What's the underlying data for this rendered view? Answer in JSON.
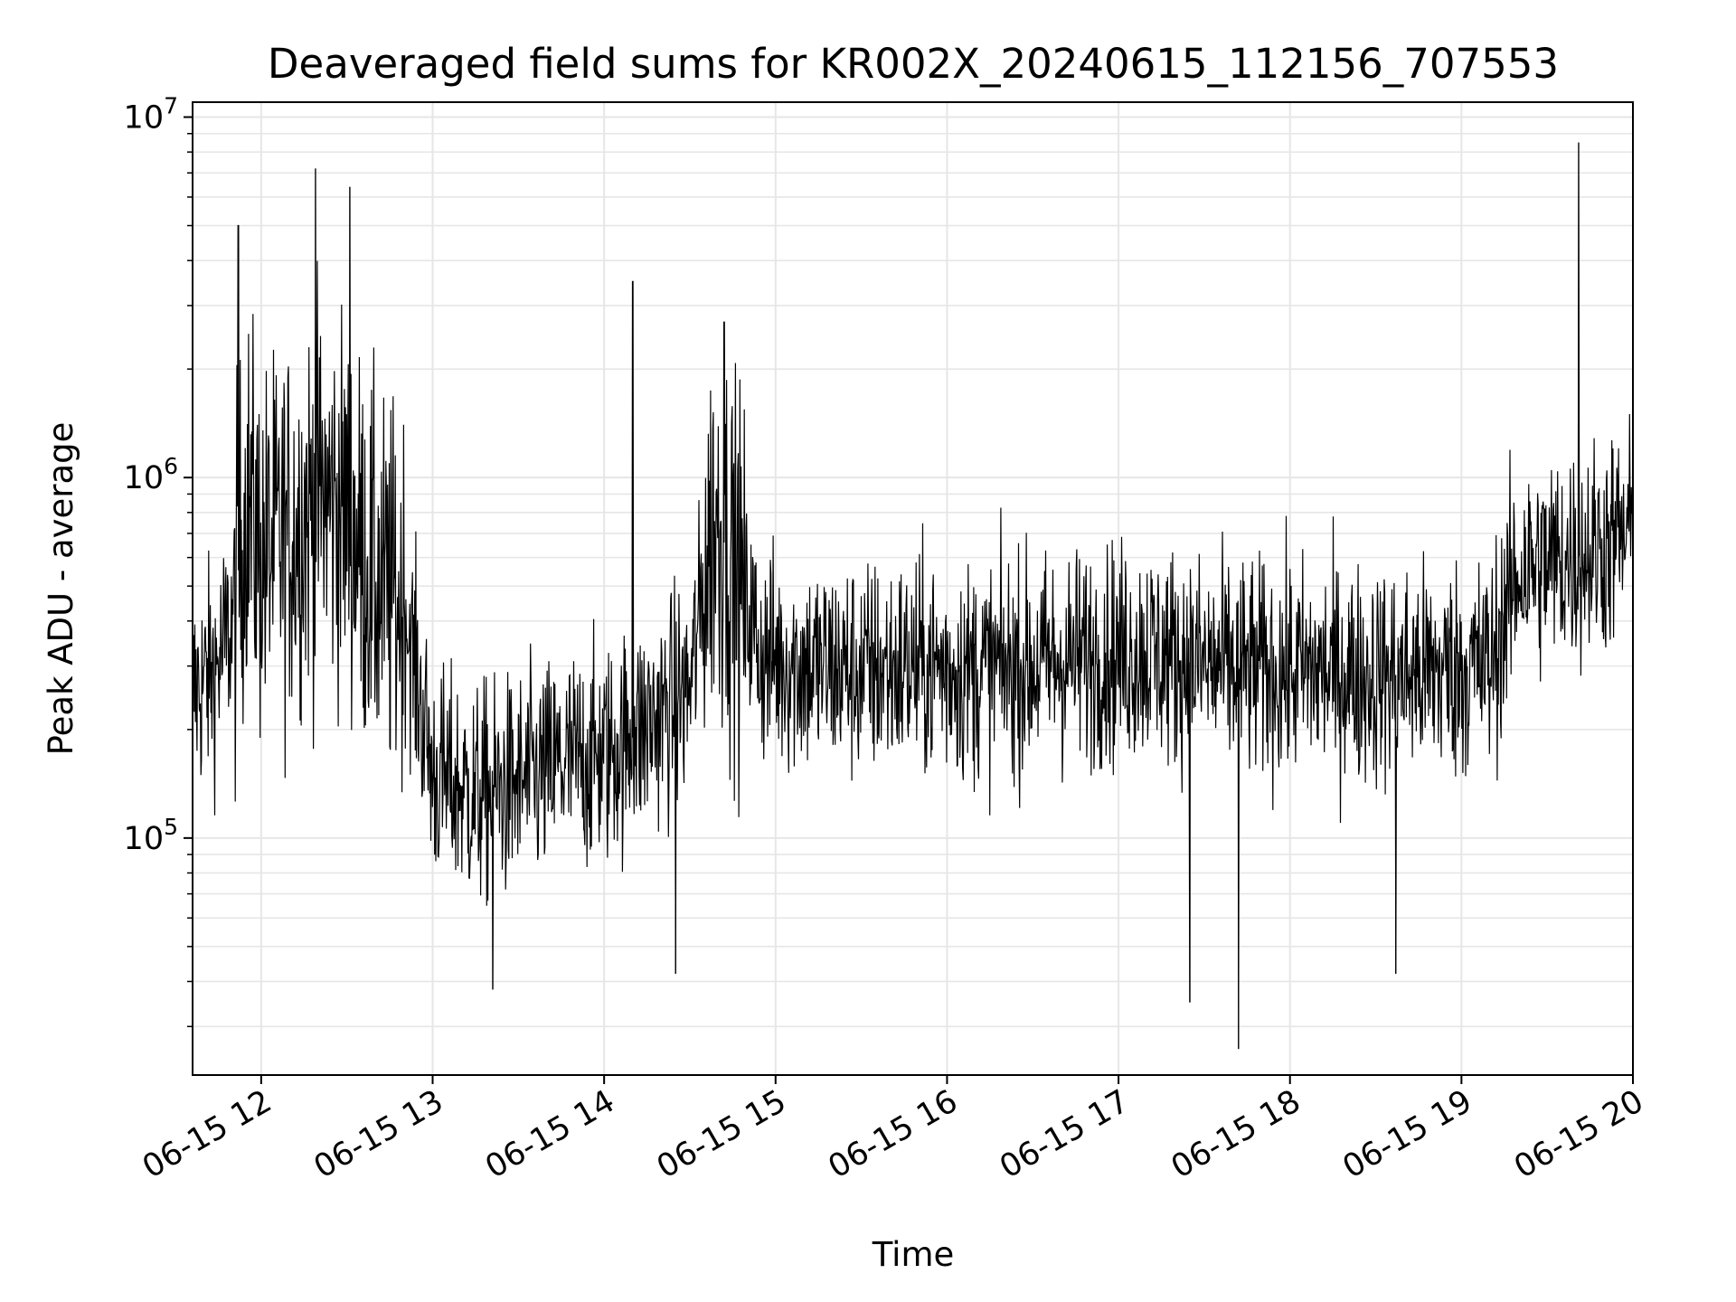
{
  "chart_data": {
    "type": "line",
    "title": "Deaveraged field sums for KR002X_20240615_112156_707553",
    "xlabel": "Time",
    "ylabel": "Peak ADU - average",
    "y_scale": "log",
    "ylim": [
      22000,
      11000000
    ],
    "xlim": [
      "06-15 11:36",
      "06-15 20:00"
    ],
    "x_ticks": [
      "06-15 12",
      "06-15 13",
      "06-15 14",
      "06-15 15",
      "06-15 16",
      "06-15 17",
      "06-15 18",
      "06-15 19",
      "06-15 20"
    ],
    "y_ticks": [
      {
        "base": "10",
        "exp": "5",
        "value": 100000
      },
      {
        "base": "10",
        "exp": "6",
        "value": 1000000
      },
      {
        "base": "10",
        "exp": "7",
        "value": 10000000
      }
    ],
    "grid": true,
    "line_color": "#000000",
    "grid_color": "#e6e6e6",
    "series": [
      {
        "x": [
          "06-15 11:36",
          "06-15 11:45",
          "06-15 11:50",
          "06-15 11:55",
          "06-15 12:00",
          "06-15 12:10",
          "06-15 12:20",
          "06-15 12:30",
          "06-15 12:40",
          "06-15 12:50",
          "06-15 13:00",
          "06-15 13:15",
          "06-15 13:30",
          "06-15 13:45",
          "06-15 14:00",
          "06-15 14:10",
          "06-15 14:20",
          "06-15 14:30",
          "06-15 14:38",
          "06-15 14:45",
          "06-15 14:55",
          "06-15 15:10",
          "06-15 15:30",
          "06-15 15:50",
          "06-15 16:10",
          "06-15 16:30",
          "06-15 16:50",
          "06-15 17:10",
          "06-15 17:30",
          "06-15 17:50",
          "06-15 18:10",
          "06-15 18:30",
          "06-15 18:50",
          "06-15 19:10",
          "06-15 19:20",
          "06-15 19:30",
          "06-15 19:40",
          "06-15 19:50",
          "06-15 20:00"
        ],
        "values": [
          250000,
          300000,
          400000,
          900000,
          600000,
          700000,
          900000,
          800000,
          500000,
          450000,
          150000,
          130000,
          140000,
          160000,
          170000,
          190000,
          220000,
          260000,
          750000,
          600000,
          320000,
          300000,
          290000,
          300000,
          290000,
          300000,
          320000,
          330000,
          300000,
          290000,
          290000,
          280000,
          290000,
          300000,
          550000,
          580000,
          600000,
          650000,
          700000
        ],
        "spikes": [
          {
            "x": "06-15 11:52",
            "value": 5000000
          },
          {
            "x": "06-15 12:19",
            "value": 7200000
          },
          {
            "x": "06-15 12:31",
            "value": 6400000
          },
          {
            "x": "06-15 14:10",
            "value": 3500000
          },
          {
            "x": "06-15 14:42",
            "value": 2700000
          },
          {
            "x": "06-15 19:41",
            "value": 8500000
          },
          {
            "x": "06-15 13:21",
            "value": 38000
          },
          {
            "x": "06-15 14:25",
            "value": 42000
          },
          {
            "x": "06-15 17:25",
            "value": 35000
          },
          {
            "x": "06-15 17:42",
            "value": 26000
          },
          {
            "x": "06-15 18:37",
            "value": 42000
          }
        ]
      }
    ]
  }
}
